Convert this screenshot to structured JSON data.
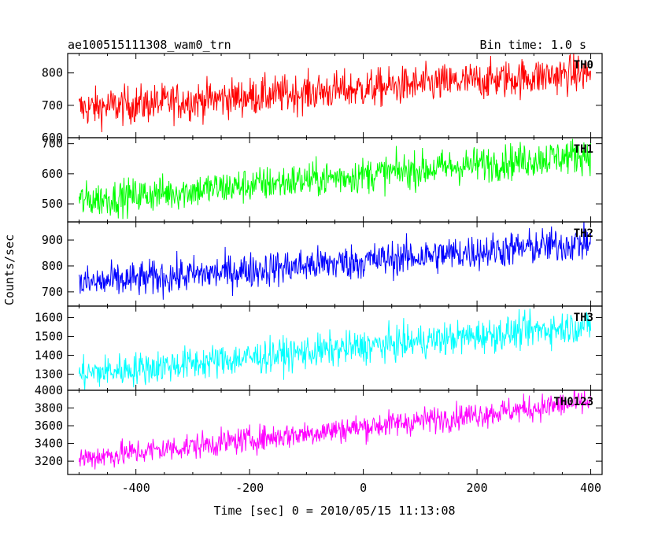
{
  "header": {
    "title": "ae100515111308_wam0_trn",
    "bin_time": "Bin time: 1.0 s"
  },
  "chart_data": {
    "type": "line",
    "title": "ae100515111308_wam0_trn",
    "xlabel": "Time [sec] 0 = 2010/05/15 11:13:08",
    "ylabel": "Counts/sec",
    "xlim": [
      -520,
      420
    ],
    "x_ticks": [
      -400,
      -200,
      0,
      200,
      400
    ],
    "x_start": -500,
    "x_end": 400,
    "x_step": 1,
    "grid": false,
    "panels": [
      {
        "name": "TH0",
        "color": "#ff0000",
        "ylim": [
          600,
          860
        ],
        "ticks": [
          600,
          700,
          800
        ],
        "tick_labels": [
          "600",
          "700",
          "800"
        ],
        "start": 690,
        "end": 800,
        "noise": 30
      },
      {
        "name": "TH1",
        "color": "#00ff00",
        "ylim": [
          440,
          720
        ],
        "ticks": [
          500,
          600,
          700
        ],
        "tick_labels": [
          "500",
          "600",
          "700"
        ],
        "start": 510,
        "end": 665,
        "noise": 30
      },
      {
        "name": "TH2",
        "color": "#0000ff",
        "ylim": [
          645,
          970
        ],
        "ticks": [
          700,
          800,
          900
        ],
        "tick_labels": [
          "700",
          "800",
          "900"
        ],
        "start": 730,
        "end": 890,
        "noise": 35
      },
      {
        "name": "TH3",
        "color": "#00ffff",
        "ylim": [
          1215,
          1660
        ],
        "ticks": [
          1300,
          1400,
          1500,
          1600
        ],
        "tick_labels": [
          "1300",
          "1400",
          "1500",
          "1600"
        ],
        "start": 1300,
        "end": 1560,
        "noise": 45
      },
      {
        "name": "TH0123",
        "color": "#ff00ff",
        "ylim": [
          3050,
          4000
        ],
        "ticks": [
          3200,
          3400,
          3600,
          3800,
          4000
        ],
        "tick_labels": [
          "3200",
          "3400",
          "3600",
          "3800",
          "4000"
        ],
        "start": 3230,
        "end": 3870,
        "noise": 75
      }
    ]
  }
}
